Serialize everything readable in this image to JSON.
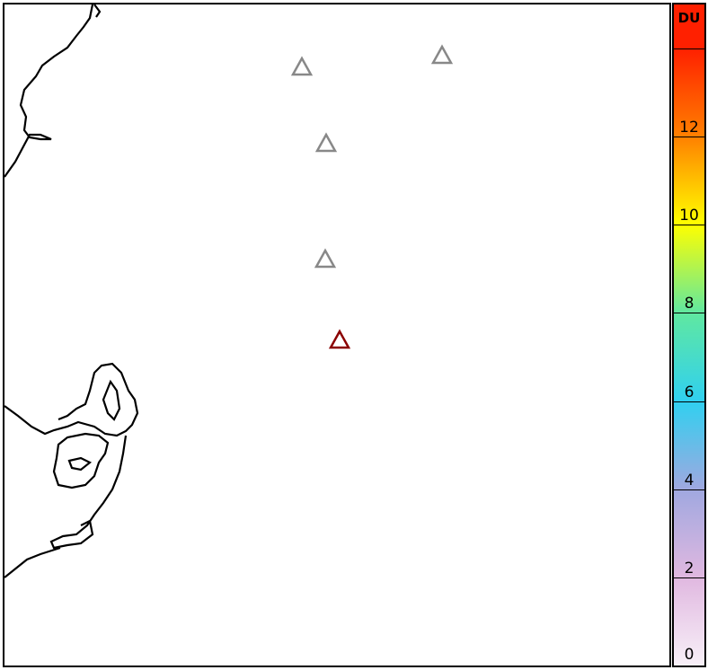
{
  "map": {
    "volcanoes": [
      {
        "status": "inactive",
        "color": "#888888"
      },
      {
        "status": "inactive",
        "color": "#888888"
      },
      {
        "status": "inactive",
        "color": "#888888"
      },
      {
        "status": "inactive",
        "color": "#888888"
      },
      {
        "status": "active",
        "color": "#8b0000"
      }
    ],
    "coastline_color": "#000000"
  },
  "colorbar": {
    "unit": "DU",
    "min": 0,
    "max": 15,
    "tick_labels": [
      "0",
      "2",
      "4",
      "6",
      "8",
      "10",
      "12"
    ],
    "colors": [
      "#f8f0f8",
      "#e0b8e0",
      "#a0a8e0",
      "#30d0f0",
      "#60e8a0",
      "#ffff00",
      "#ff8000",
      "#ff2000"
    ]
  }
}
